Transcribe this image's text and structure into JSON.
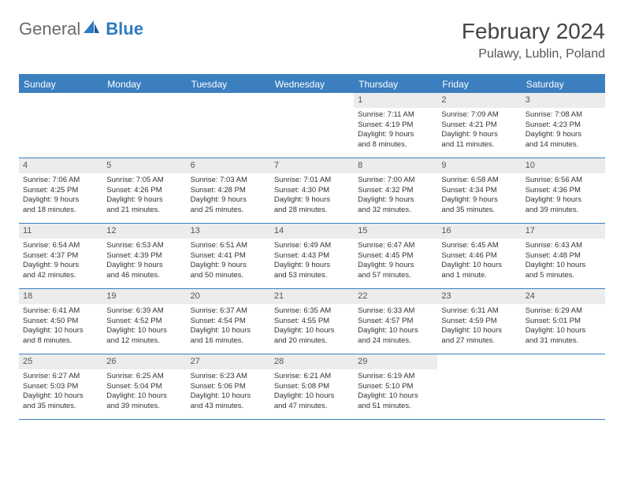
{
  "logo": {
    "text_general": "General",
    "text_blue": "Blue"
  },
  "header": {
    "title": "February 2024",
    "location": "Pulawy, Lublin, Poland"
  },
  "colors": {
    "header_blue": "#3b7fbf",
    "day_number_bg": "#ececec",
    "text_dark": "#333333",
    "text_muted": "#555555",
    "background": "#ffffff"
  },
  "weekdays": [
    "Sunday",
    "Monday",
    "Tuesday",
    "Wednesday",
    "Thursday",
    "Friday",
    "Saturday"
  ],
  "weeks": [
    [
      null,
      null,
      null,
      null,
      {
        "n": "1",
        "sr": "Sunrise: 7:11 AM",
        "ss": "Sunset: 4:19 PM",
        "dl1": "Daylight: 9 hours",
        "dl2": "and 8 minutes."
      },
      {
        "n": "2",
        "sr": "Sunrise: 7:09 AM",
        "ss": "Sunset: 4:21 PM",
        "dl1": "Daylight: 9 hours",
        "dl2": "and 11 minutes."
      },
      {
        "n": "3",
        "sr": "Sunrise: 7:08 AM",
        "ss": "Sunset: 4:23 PM",
        "dl1": "Daylight: 9 hours",
        "dl2": "and 14 minutes."
      }
    ],
    [
      {
        "n": "4",
        "sr": "Sunrise: 7:06 AM",
        "ss": "Sunset: 4:25 PM",
        "dl1": "Daylight: 9 hours",
        "dl2": "and 18 minutes."
      },
      {
        "n": "5",
        "sr": "Sunrise: 7:05 AM",
        "ss": "Sunset: 4:26 PM",
        "dl1": "Daylight: 9 hours",
        "dl2": "and 21 minutes."
      },
      {
        "n": "6",
        "sr": "Sunrise: 7:03 AM",
        "ss": "Sunset: 4:28 PM",
        "dl1": "Daylight: 9 hours",
        "dl2": "and 25 minutes."
      },
      {
        "n": "7",
        "sr": "Sunrise: 7:01 AM",
        "ss": "Sunset: 4:30 PM",
        "dl1": "Daylight: 9 hours",
        "dl2": "and 28 minutes."
      },
      {
        "n": "8",
        "sr": "Sunrise: 7:00 AM",
        "ss": "Sunset: 4:32 PM",
        "dl1": "Daylight: 9 hours",
        "dl2": "and 32 minutes."
      },
      {
        "n": "9",
        "sr": "Sunrise: 6:58 AM",
        "ss": "Sunset: 4:34 PM",
        "dl1": "Daylight: 9 hours",
        "dl2": "and 35 minutes."
      },
      {
        "n": "10",
        "sr": "Sunrise: 6:56 AM",
        "ss": "Sunset: 4:36 PM",
        "dl1": "Daylight: 9 hours",
        "dl2": "and 39 minutes."
      }
    ],
    [
      {
        "n": "11",
        "sr": "Sunrise: 6:54 AM",
        "ss": "Sunset: 4:37 PM",
        "dl1": "Daylight: 9 hours",
        "dl2": "and 42 minutes."
      },
      {
        "n": "12",
        "sr": "Sunrise: 6:53 AM",
        "ss": "Sunset: 4:39 PM",
        "dl1": "Daylight: 9 hours",
        "dl2": "and 46 minutes."
      },
      {
        "n": "13",
        "sr": "Sunrise: 6:51 AM",
        "ss": "Sunset: 4:41 PM",
        "dl1": "Daylight: 9 hours",
        "dl2": "and 50 minutes."
      },
      {
        "n": "14",
        "sr": "Sunrise: 6:49 AM",
        "ss": "Sunset: 4:43 PM",
        "dl1": "Daylight: 9 hours",
        "dl2": "and 53 minutes."
      },
      {
        "n": "15",
        "sr": "Sunrise: 6:47 AM",
        "ss": "Sunset: 4:45 PM",
        "dl1": "Daylight: 9 hours",
        "dl2": "and 57 minutes."
      },
      {
        "n": "16",
        "sr": "Sunrise: 6:45 AM",
        "ss": "Sunset: 4:46 PM",
        "dl1": "Daylight: 10 hours",
        "dl2": "and 1 minute."
      },
      {
        "n": "17",
        "sr": "Sunrise: 6:43 AM",
        "ss": "Sunset: 4:48 PM",
        "dl1": "Daylight: 10 hours",
        "dl2": "and 5 minutes."
      }
    ],
    [
      {
        "n": "18",
        "sr": "Sunrise: 6:41 AM",
        "ss": "Sunset: 4:50 PM",
        "dl1": "Daylight: 10 hours",
        "dl2": "and 8 minutes."
      },
      {
        "n": "19",
        "sr": "Sunrise: 6:39 AM",
        "ss": "Sunset: 4:52 PM",
        "dl1": "Daylight: 10 hours",
        "dl2": "and 12 minutes."
      },
      {
        "n": "20",
        "sr": "Sunrise: 6:37 AM",
        "ss": "Sunset: 4:54 PM",
        "dl1": "Daylight: 10 hours",
        "dl2": "and 16 minutes."
      },
      {
        "n": "21",
        "sr": "Sunrise: 6:35 AM",
        "ss": "Sunset: 4:55 PM",
        "dl1": "Daylight: 10 hours",
        "dl2": "and 20 minutes."
      },
      {
        "n": "22",
        "sr": "Sunrise: 6:33 AM",
        "ss": "Sunset: 4:57 PM",
        "dl1": "Daylight: 10 hours",
        "dl2": "and 24 minutes."
      },
      {
        "n": "23",
        "sr": "Sunrise: 6:31 AM",
        "ss": "Sunset: 4:59 PM",
        "dl1": "Daylight: 10 hours",
        "dl2": "and 27 minutes."
      },
      {
        "n": "24",
        "sr": "Sunrise: 6:29 AM",
        "ss": "Sunset: 5:01 PM",
        "dl1": "Daylight: 10 hours",
        "dl2": "and 31 minutes."
      }
    ],
    [
      {
        "n": "25",
        "sr": "Sunrise: 6:27 AM",
        "ss": "Sunset: 5:03 PM",
        "dl1": "Daylight: 10 hours",
        "dl2": "and 35 minutes."
      },
      {
        "n": "26",
        "sr": "Sunrise: 6:25 AM",
        "ss": "Sunset: 5:04 PM",
        "dl1": "Daylight: 10 hours",
        "dl2": "and 39 minutes."
      },
      {
        "n": "27",
        "sr": "Sunrise: 6:23 AM",
        "ss": "Sunset: 5:06 PM",
        "dl1": "Daylight: 10 hours",
        "dl2": "and 43 minutes."
      },
      {
        "n": "28",
        "sr": "Sunrise: 6:21 AM",
        "ss": "Sunset: 5:08 PM",
        "dl1": "Daylight: 10 hours",
        "dl2": "and 47 minutes."
      },
      {
        "n": "29",
        "sr": "Sunrise: 6:19 AM",
        "ss": "Sunset: 5:10 PM",
        "dl1": "Daylight: 10 hours",
        "dl2": "and 51 minutes."
      },
      null,
      null
    ]
  ]
}
